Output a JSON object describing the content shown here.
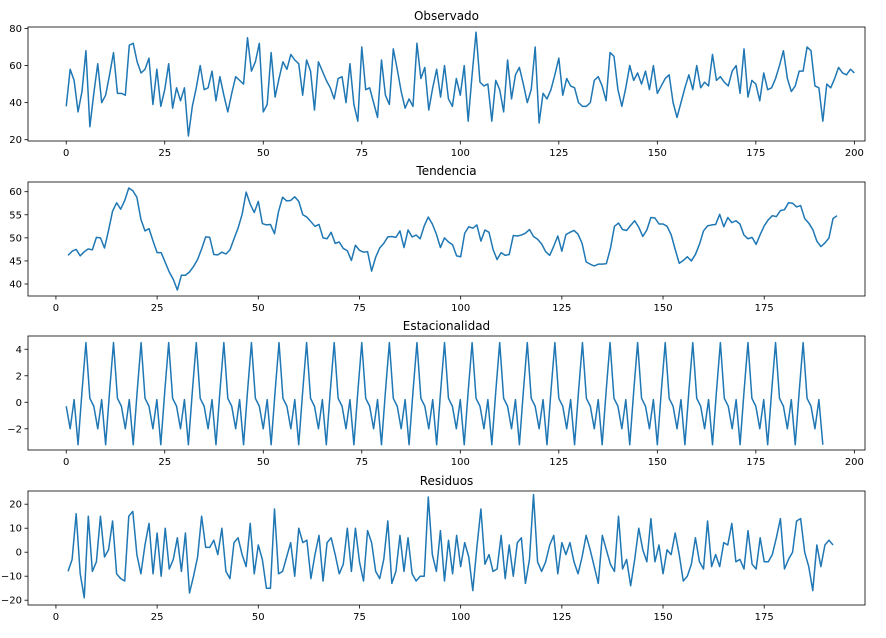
{
  "chart_data": [
    {
      "type": "line",
      "title": "Observado",
      "xlim": [
        -9.7,
        202.7
      ],
      "ylim": [
        19.3,
        80.8
      ],
      "xticks": [
        0,
        25,
        50,
        75,
        100,
        125,
        150,
        175,
        200
      ],
      "yticks": [
        20,
        40,
        60,
        80
      ],
      "x_start": 0,
      "series": [
        {
          "values": [
            38,
            58,
            52,
            35,
            46,
            68,
            27,
            45,
            61,
            40,
            44,
            55,
            67,
            45,
            45,
            44,
            71,
            72,
            62,
            56,
            58,
            64,
            39,
            58,
            38,
            47,
            61,
            37,
            48,
            41,
            48,
            22,
            38,
            48,
            60,
            47,
            48,
            57,
            41,
            54,
            44,
            35,
            45,
            54,
            52,
            50,
            75,
            57,
            62,
            72,
            35,
            39,
            67,
            43,
            53,
            62,
            58,
            66,
            63,
            61,
            44,
            63,
            57,
            36,
            62,
            57,
            52,
            48,
            42,
            53,
            54,
            40,
            61,
            39,
            30,
            70,
            47,
            48,
            40,
            32,
            63,
            44,
            39,
            69,
            58,
            46,
            37,
            42,
            38,
            72,
            53,
            59,
            36,
            48,
            58,
            43,
            60,
            42,
            38,
            53,
            44,
            60,
            30,
            55,
            78,
            51,
            49,
            50,
            30,
            52,
            47,
            35,
            63,
            42,
            55,
            59,
            50,
            40,
            47,
            70,
            29,
            45,
            42,
            47,
            55,
            64,
            44,
            53,
            49,
            48,
            40,
            38,
            38,
            40,
            52,
            54,
            49,
            41,
            67,
            65,
            47,
            38,
            48,
            60,
            52,
            56,
            50,
            57,
            47,
            60,
            45,
            49,
            53,
            55,
            40,
            32,
            40,
            48,
            55,
            47,
            60,
            48,
            51,
            49,
            66,
            52,
            54,
            51,
            49,
            57,
            60,
            45,
            69,
            43,
            52,
            50,
            41,
            56,
            47,
            48,
            53,
            60,
            68,
            53,
            46,
            49,
            57,
            57,
            70,
            68,
            49,
            48,
            30,
            50,
            48,
            53,
            59,
            56,
            55,
            58,
            56
          ]
        }
      ]
    },
    {
      "type": "line",
      "title": "Tendencia",
      "xlim": [
        -6.9,
        199.9
      ],
      "ylim": [
        37.4,
        62.1
      ],
      "xticks": [
        0,
        25,
        50,
        75,
        100,
        125,
        150,
        175
      ],
      "yticks": [
        40,
        45,
        50,
        55,
        60
      ],
      "x_start": 3,
      "series": [
        {
          "values": [
            46.2,
            47.1,
            47.5,
            46.1,
            47.0,
            47.6,
            47.4,
            50.1,
            50.0,
            47.8,
            51.6,
            55.8,
            57.6,
            56.2,
            58.1,
            60.8,
            60.2,
            58.8,
            54.0,
            51.5,
            52.0,
            49.3,
            46.8,
            46.8,
            44.7,
            42.6,
            41.0,
            38.7,
            41.9,
            41.9,
            42.6,
            43.8,
            45.3,
            47.6,
            50.2,
            50.1,
            46.4,
            46.3,
            46.9,
            46.5,
            47.4,
            49.8,
            52.1,
            55.1,
            59.9,
            57.3,
            55.5,
            57.9,
            53.1,
            52.8,
            52.9,
            50.9,
            55.7,
            58.8,
            58.0,
            58.1,
            58.9,
            57.9,
            55.0,
            54.5,
            53.5,
            52.5,
            52.9,
            50.0,
            49.8,
            51.2,
            48.8,
            49.1,
            47.7,
            47.2,
            45.1,
            48.4,
            47.3,
            46.9,
            47.0,
            42.8,
            45.8,
            47.8,
            48.8,
            50.2,
            50.3,
            50.1,
            51.5,
            47.9,
            51.7,
            50.2,
            50.6,
            49.8,
            52.6,
            54.5,
            53.0,
            50.8,
            47.9,
            50.0,
            49.1,
            48.5,
            46.1,
            45.9,
            51.0,
            52.4,
            52.1,
            52.8,
            49.3,
            51.7,
            51.2,
            47.5,
            45.3,
            46.8,
            46.2,
            46.4,
            50.5,
            50.4,
            50.6,
            51.0,
            51.8,
            50.3,
            49.7,
            48.7,
            47.0,
            46.2,
            48.2,
            50.4,
            47.1,
            50.7,
            51.2,
            51.6,
            50.8,
            48.8,
            44.8,
            44.3,
            43.9,
            44.3,
            44.3,
            44.4,
            47.7,
            52.5,
            53.2,
            51.8,
            51.6,
            52.7,
            53.7,
            52.3,
            50.3,
            51.7,
            54.4,
            54.3,
            53.0,
            53.0,
            52.5,
            50.7,
            47.5,
            44.5,
            45.1,
            45.9,
            45.0,
            46.4,
            48.6,
            51.5,
            52.6,
            52.8,
            52.9,
            55.1,
            52.4,
            54.4,
            53.3,
            53.7,
            53.0,
            50.6,
            49.8,
            50.1,
            48.6,
            50.7,
            52.6,
            53.9,
            54.8,
            54.6,
            55.9,
            56.1,
            57.6,
            57.5,
            56.7,
            57.0,
            54.2,
            53.2,
            51.8,
            49.3,
            48.1,
            48.9,
            50.0,
            54.2,
            54.8
          ]
        }
      ]
    },
    {
      "type": "line",
      "title": "Estacionalidad",
      "xlim": [
        -9.7,
        202.7
      ],
      "ylim": [
        -3.6,
        5.0
      ],
      "xticks": [
        0,
        25,
        50,
        75,
        100,
        125,
        150,
        175,
        200
      ],
      "yticks": [
        -2,
        0,
        2,
        4
      ],
      "x_start": 0,
      "period": 7,
      "series": [
        {
          "values": [
            -0.3,
            -2.0,
            0.2,
            -3.2,
            0.8,
            4.5,
            0.3
          ],
          "repeat_until": 193
        }
      ]
    },
    {
      "type": "line",
      "title": "Residuos",
      "xlim": [
        -6.9,
        199.9
      ],
      "ylim": [
        -22.0,
        25.5
      ],
      "xticks": [
        0,
        25,
        50,
        75,
        100,
        125,
        150,
        175
      ],
      "yticks": [
        -20,
        -10,
        0,
        10,
        20
      ],
      "x_start": 3,
      "series": [
        {
          "values": [
            -8,
            -3,
            16,
            -9,
            -19,
            15,
            -8,
            -4,
            15,
            -2,
            1,
            13,
            -9,
            -11,
            -12,
            15,
            17,
            -1,
            -9,
            3,
            12,
            -9,
            8,
            -10,
            10,
            -7,
            -3,
            6,
            -8,
            8,
            -17,
            -10,
            -2,
            15,
            2,
            2,
            5,
            -1,
            10,
            -8,
            -11,
            4,
            6,
            -1,
            -6,
            12,
            -9,
            3,
            -3,
            -15,
            -15,
            18,
            -9,
            -8,
            -2,
            4,
            -10,
            10,
            4,
            5,
            -11,
            -1,
            7,
            -12,
            4,
            6,
            -1,
            -9,
            -5,
            10,
            -8,
            10,
            -4,
            -12,
            9,
            4,
            -8,
            -11,
            -3,
            13,
            -13,
            -8,
            7,
            -8,
            6,
            -9,
            -12,
            -10,
            -10,
            23,
            -1,
            -8,
            9,
            -12,
            5,
            -9,
            7,
            -6,
            4,
            -2,
            -16,
            2,
            18,
            -5,
            -1,
            -8,
            -7,
            7,
            -11,
            3,
            -10,
            4,
            6,
            -13,
            -3,
            24,
            -4,
            -8,
            -4,
            3,
            7,
            -9,
            4,
            -1,
            4,
            -4,
            -9,
            -2,
            7,
            1,
            -6,
            -13,
            7,
            1,
            -5,
            -8,
            15,
            -7,
            -3,
            -14,
            -3,
            10,
            1,
            -4,
            14,
            -4,
            3,
            -9,
            1,
            -1,
            8,
            -1,
            -12,
            -10,
            -5,
            6,
            -4,
            -7,
            13,
            -6,
            -1,
            -6,
            4,
            3,
            12,
            -4,
            -3,
            -7,
            9,
            -5,
            -7,
            6,
            -4,
            -4,
            -1,
            6,
            14,
            -7,
            -3,
            0,
            13,
            14,
            0,
            -6,
            -16,
            3,
            -6,
            3,
            5,
            3
          ]
        }
      ]
    }
  ]
}
